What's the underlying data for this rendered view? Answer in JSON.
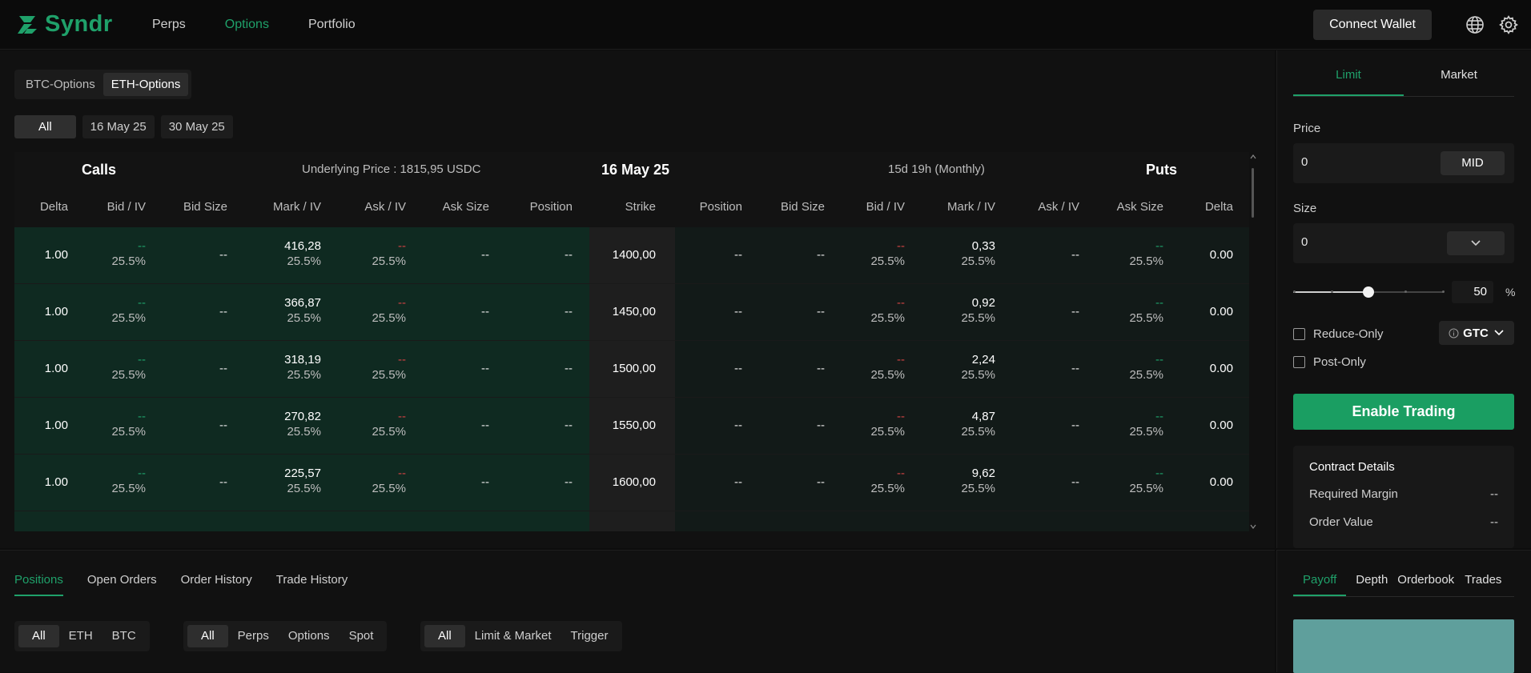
{
  "app": {
    "name": "Syndr"
  },
  "nav": {
    "perps": "Perps",
    "options": "Options",
    "portfolio": "Portfolio"
  },
  "topbar": {
    "connect_wallet": "Connect Wallet"
  },
  "asset_tabs": {
    "btc": "BTC-Options",
    "eth": "ETH-Options"
  },
  "date_tabs": {
    "all": "All",
    "d1": "16 May 25",
    "d2": "30 May 25"
  },
  "chain": {
    "calls_title": "Calls",
    "underlying": "Underlying Price : 1815,95 USDC",
    "expiry": "16 May 25",
    "time_left": "15d 19h (Monthly)",
    "puts_title": "Puts",
    "headers": {
      "delta": "Delta",
      "bid_iv": "Bid / IV",
      "bid_size": "Bid Size",
      "mark_iv": "Mark / IV",
      "ask_iv": "Ask / IV",
      "ask_size": "Ask Size",
      "position": "Position",
      "strike": "Strike"
    },
    "rows": [
      {
        "call_delta": "1.00",
        "call_bid": "--",
        "call_bid_iv": "25.5%",
        "call_bid_size": "--",
        "call_mark": "416,28",
        "call_mark_iv": "25.5%",
        "call_ask": "--",
        "call_ask_iv": "25.5%",
        "call_ask_size": "--",
        "call_pos": "--",
        "strike": "1400,00",
        "put_pos": "--",
        "put_bid_size": "--",
        "put_bid": "--",
        "put_bid_iv": "25.5%",
        "put_mark": "0,33",
        "put_mark_iv": "25.5%",
        "put_ask": "--",
        "put_ask_size": "--",
        "put_ask_size_iv": "25.5%",
        "put_delta": "0.00"
      },
      {
        "call_delta": "1.00",
        "call_bid": "--",
        "call_bid_iv": "25.5%",
        "call_bid_size": "--",
        "call_mark": "366,87",
        "call_mark_iv": "25.5%",
        "call_ask": "--",
        "call_ask_iv": "25.5%",
        "call_ask_size": "--",
        "call_pos": "--",
        "strike": "1450,00",
        "put_pos": "--",
        "put_bid_size": "--",
        "put_bid": "--",
        "put_bid_iv": "25.5%",
        "put_mark": "0,92",
        "put_mark_iv": "25.5%",
        "put_ask": "--",
        "put_ask_size": "--",
        "put_ask_size_iv": "25.5%",
        "put_delta": "0.00"
      },
      {
        "call_delta": "1.00",
        "call_bid": "--",
        "call_bid_iv": "25.5%",
        "call_bid_size": "--",
        "call_mark": "318,19",
        "call_mark_iv": "25.5%",
        "call_ask": "--",
        "call_ask_iv": "25.5%",
        "call_ask_size": "--",
        "call_pos": "--",
        "strike": "1500,00",
        "put_pos": "--",
        "put_bid_size": "--",
        "put_bid": "--",
        "put_bid_iv": "25.5%",
        "put_mark": "2,24",
        "put_mark_iv": "25.5%",
        "put_ask": "--",
        "put_ask_size": "--",
        "put_ask_size_iv": "25.5%",
        "put_delta": "0.00"
      },
      {
        "call_delta": "1.00",
        "call_bid": "--",
        "call_bid_iv": "25.5%",
        "call_bid_size": "--",
        "call_mark": "270,82",
        "call_mark_iv": "25.5%",
        "call_ask": "--",
        "call_ask_iv": "25.5%",
        "call_ask_size": "--",
        "call_pos": "--",
        "strike": "1550,00",
        "put_pos": "--",
        "put_bid_size": "--",
        "put_bid": "--",
        "put_bid_iv": "25.5%",
        "put_mark": "4,87",
        "put_mark_iv": "25.5%",
        "put_ask": "--",
        "put_ask_size": "--",
        "put_ask_size_iv": "25.5%",
        "put_delta": "0.00"
      },
      {
        "call_delta": "1.00",
        "call_bid": "--",
        "call_bid_iv": "25.5%",
        "call_bid_size": "--",
        "call_mark": "225,57",
        "call_mark_iv": "25.5%",
        "call_ask": "--",
        "call_ask_iv": "25.5%",
        "call_ask_size": "--",
        "call_pos": "--",
        "strike": "1600,00",
        "put_pos": "--",
        "put_bid_size": "--",
        "put_bid": "--",
        "put_bid_iv": "25.5%",
        "put_mark": "9,62",
        "put_mark_iv": "25.5%",
        "put_ask": "--",
        "put_ask_size": "--",
        "put_ask_size_iv": "25.5%",
        "put_delta": "0.00"
      }
    ]
  },
  "order": {
    "limit": "Limit",
    "market": "Market",
    "price_label": "Price",
    "price_value": "0",
    "mid": "MID",
    "size_label": "Size",
    "size_value": "0",
    "slider_pct": "50",
    "pct_symbol": "%",
    "reduce_only": "Reduce-Only",
    "post_only": "Post-Only",
    "tif": "GTC",
    "enable_trading": "Enable Trading",
    "contract_title": "Contract Details",
    "required_margin": "Required Margin",
    "required_margin_val": "--",
    "order_value": "Order Value",
    "order_value_val": "--"
  },
  "bottom": {
    "tabs": {
      "positions": "Positions",
      "open_orders": "Open Orders",
      "order_history": "Order History",
      "trade_history": "Trade History"
    },
    "asset_filters": {
      "all": "All",
      "eth": "ETH",
      "btc": "BTC"
    },
    "type_filters": {
      "all": "All",
      "perps": "Perps",
      "options": "Options",
      "spot": "Spot"
    },
    "order_filters": {
      "all": "All",
      "limit_market": "Limit & Market",
      "trigger": "Trigger"
    }
  },
  "side_tabs": {
    "payoff": "Payoff",
    "depth": "Depth",
    "orderbook": "Orderbook",
    "trades": "Trades"
  },
  "colors": {
    "accent": "#1fa16a",
    "red": "#d24343",
    "payoff_fill": "#5f9f9c"
  }
}
